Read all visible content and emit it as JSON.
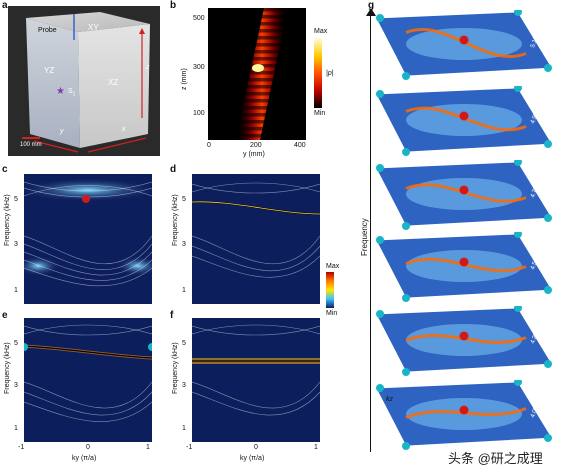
{
  "panels": {
    "a": {
      "label": "a",
      "texts": {
        "xy": "XY",
        "probe": "Probe",
        "yz": "YZ",
        "xz": "XZ",
        "s1": "S",
        "s1_sub": "1",
        "z": "z",
        "y": "y",
        "x": "x",
        "scale": "100 mm"
      }
    },
    "b": {
      "label": "b",
      "xlabel": "y (mm)",
      "ylabel": "z (mm)",
      "xticks": [
        "0",
        "200",
        "400"
      ],
      "yticks": [
        "500",
        "300",
        "100"
      ],
      "cbar_max": "Max",
      "cbar_min": "Min",
      "cbar_label": "|p|"
    },
    "c": {
      "label": "c",
      "ylabel": "Frequency (kHz)",
      "yticks": [
        "5",
        "3",
        "1"
      ]
    },
    "d": {
      "label": "d",
      "ylabel": "Frequency (kHz)",
      "yticks": [
        "5",
        "3",
        "1"
      ]
    },
    "e": {
      "label": "e",
      "ylabel": "Frequency (kHz)",
      "yticks": [
        "5",
        "3",
        "1"
      ],
      "xticks": [
        "-1",
        "0",
        "1"
      ],
      "xlabel": "ky (π/a)"
    },
    "f": {
      "label": "f",
      "ylabel": "Frequency (kHz)",
      "yticks": [
        "5",
        "3",
        "1"
      ],
      "xticks": [
        "-1",
        "0",
        "1"
      ],
      "xlabel": "ky (π/a)"
    },
    "mid_cbar": {
      "max": "Max",
      "min": "Min"
    },
    "g": {
      "label": "g",
      "axis_label": "Frequency",
      "kz": "kz",
      "slices": [
        "5.175 kHz",
        "4.955 kHz",
        "4.735 kHz",
        "4.515 kHz",
        "4.295 kHz",
        "4.075 kHz"
      ]
    }
  },
  "watermark": "头条 @研之成理",
  "colors": {
    "map_dark": "#0d1e5c",
    "map_light": "#4ea8e0",
    "hot": "#ff3b00",
    "sphere_red": "#d11919",
    "sphere_cyan": "#18b5c9"
  }
}
